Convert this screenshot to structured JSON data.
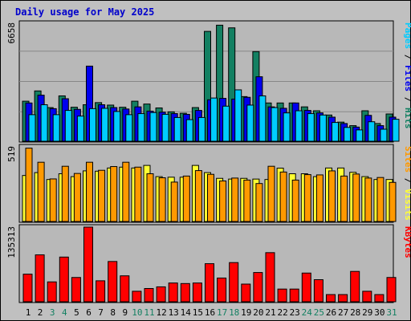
{
  "title": "Daily usage for May 2025",
  "colors": {
    "background": "#c0c0c0",
    "plot": "#b8b8b8",
    "border_dark": "#000000",
    "title": "#0000cc",
    "hits": "#138062",
    "files": "#0000ee",
    "pages": "#00ccff",
    "visits": "#ffff33",
    "sites": "#ff9900",
    "kbytes": "#ff0000",
    "weekend_day": "#138062",
    "weekday": "#000000"
  },
  "chart_data": [
    {
      "type": "bar",
      "panel": "top",
      "max_label": "6658",
      "ylim": [
        0,
        6658
      ],
      "right_label": [
        {
          "text": "Pages",
          "color": "#00ccff"
        },
        {
          "text": " / ",
          "color": "#000000"
        },
        {
          "text": "Files",
          "color": "#0000ee"
        },
        {
          "text": " / ",
          "color": "#000000"
        },
        {
          "text": "Hits",
          "color": "#138062"
        }
      ],
      "categories": [
        "1",
        "2",
        "3",
        "4",
        "5",
        "6",
        "7",
        "8",
        "9",
        "10",
        "11",
        "12",
        "13",
        "14",
        "15",
        "16",
        "17",
        "18",
        "19",
        "20",
        "21",
        "22",
        "23",
        "24",
        "25",
        "26",
        "27",
        "28",
        "29",
        "30",
        "31"
      ],
      "series": [
        {
          "name": "Hits",
          "color": "#138062",
          "values": [
            2260,
            2840,
            1900,
            2560,
            1920,
            2060,
            2180,
            2040,
            1920,
            2260,
            2100,
            1880,
            1660,
            1580,
            1900,
            6200,
            6550,
            6400,
            2520,
            5060,
            2160,
            2160,
            2160,
            1940,
            1720,
            1480,
            1080,
            880,
            1720,
            1000,
            1540
          ]
        },
        {
          "name": "Files",
          "color": "#0000ee",
          "values": [
            2160,
            2600,
            1840,
            2400,
            1800,
            4240,
            2060,
            1900,
            1820,
            1940,
            1700,
            1640,
            1560,
            1520,
            1740,
            2340,
            2420,
            2380,
            2480,
            3640,
            1940,
            1860,
            2160,
            1740,
            1600,
            1360,
            1000,
            800,
            1460,
            880,
            1360
          ]
        },
        {
          "name": "Pages",
          "color": "#00ccff",
          "values": [
            1500,
            2060,
            1500,
            1740,
            1420,
            1840,
            1860,
            1680,
            1500,
            1560,
            1620,
            1520,
            1340,
            1220,
            1340,
            2440,
            1980,
            2900,
            2040,
            2560,
            1900,
            1600,
            1720,
            1560,
            1480,
            1060,
            780,
            640,
            1100,
            680,
            1240
          ]
        }
      ]
    },
    {
      "type": "bar",
      "panel": "middle",
      "max_label": "519",
      "ylim": [
        0,
        519
      ],
      "right_label": [
        {
          "text": "Sites",
          "color": "#ff9900"
        },
        {
          "text": " / ",
          "color": "#000000"
        },
        {
          "text": "Visits",
          "color": "#ffff33"
        }
      ],
      "categories": [
        "1",
        "2",
        "3",
        "4",
        "5",
        "6",
        "7",
        "8",
        "9",
        "10",
        "11",
        "12",
        "13",
        "14",
        "15",
        "16",
        "17",
        "18",
        "19",
        "20",
        "21",
        "22",
        "23",
        "24",
        "25",
        "26",
        "27",
        "28",
        "29",
        "30",
        "31"
      ],
      "series": [
        {
          "name": "Visits",
          "color": "#ffff33",
          "values": [
            320,
            340,
            292,
            332,
            312,
            352,
            350,
            372,
            378,
            372,
            390,
            312,
            308,
            308,
            390,
            340,
            300,
            295,
            300,
            295,
            292,
            371,
            332,
            332,
            312,
            372,
            372,
            342,
            312,
            292,
            292
          ]
        },
        {
          "name": "Sites",
          "color": "#ff9900",
          "values": [
            510,
            412,
            296,
            384,
            334,
            412,
            356,
            382,
            412,
            378,
            332,
            304,
            274,
            316,
            354,
            328,
            282,
            302,
            288,
            264,
            384,
            344,
            288,
            326,
            324,
            352,
            316,
            330,
            302,
            306,
            272
          ]
        }
      ]
    },
    {
      "type": "bar",
      "panel": "bottom",
      "max_label": "135313",
      "ylim": [
        0,
        135313
      ],
      "right_label": [
        {
          "text": "KBytes",
          "color": "#ff0000"
        }
      ],
      "categories": [
        "1",
        "2",
        "3",
        "4",
        "5",
        "6",
        "7",
        "8",
        "9",
        "10",
        "11",
        "12",
        "13",
        "14",
        "15",
        "16",
        "17",
        "18",
        "19",
        "20",
        "21",
        "22",
        "23",
        "24",
        "25",
        "26",
        "27",
        "28",
        "29",
        "30",
        "31"
      ],
      "series": [
        {
          "name": "KBytes",
          "color": "#ff0000",
          "values": [
            50000,
            85000,
            36000,
            81000,
            44000,
            135313,
            38000,
            73000,
            47000,
            19000,
            24000,
            27000,
            34000,
            33000,
            34000,
            69000,
            43000,
            71000,
            32000,
            53000,
            89000,
            23000,
            23000,
            52000,
            40000,
            13000,
            13000,
            55000,
            19000,
            13000,
            44000
          ]
        }
      ]
    }
  ],
  "weekend_days": [
    3,
    4,
    10,
    11,
    17,
    18,
    24,
    25,
    31
  ]
}
